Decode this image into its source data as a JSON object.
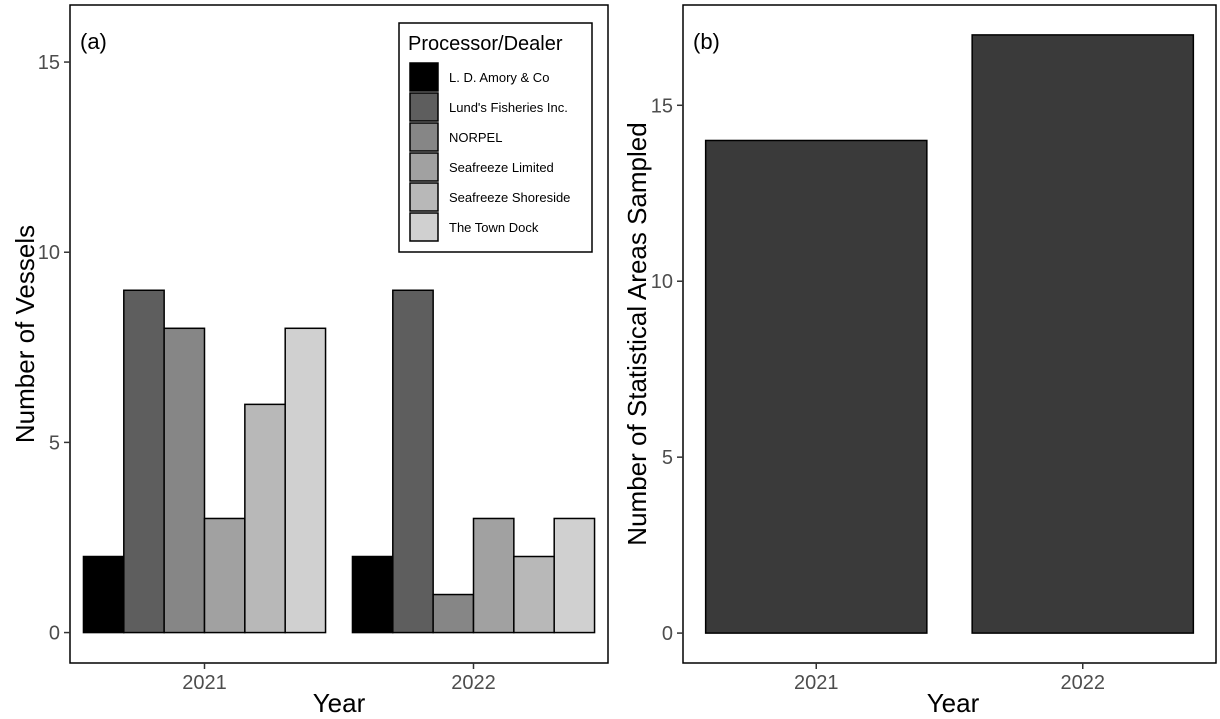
{
  "chart_data": [
    {
      "panel_tag": "(a)",
      "type": "bar",
      "categories": [
        "2021",
        "2022"
      ],
      "xlabel": "Year",
      "ylabel": "Number of Vessels",
      "ylim": [
        -0.8,
        16.5
      ],
      "yticks": [
        0,
        5,
        10,
        15
      ],
      "grid": false,
      "legend": {
        "title": "Processor/Dealer",
        "position": "top-right"
      },
      "series": [
        {
          "name": "L. D. Amory & Co",
          "color": "#000000",
          "values": [
            2,
            2
          ]
        },
        {
          "name": "Lund's Fisheries Inc.",
          "color": "#5e5e5e",
          "values": [
            9,
            9
          ]
        },
        {
          "name": "NORPEL",
          "color": "#868686",
          "values": [
            8,
            1
          ]
        },
        {
          "name": "Seafreeze Limited",
          "color": "#a1a1a1",
          "values": [
            3,
            3
          ]
        },
        {
          "name": "Seafreeze Shoreside",
          "color": "#b8b8b8",
          "values": [
            6,
            2
          ]
        },
        {
          "name": "The Town Dock",
          "color": "#d0d0d0",
          "values": [
            8,
            3
          ]
        }
      ]
    },
    {
      "panel_tag": "(b)",
      "type": "bar",
      "categories": [
        "2021",
        "2022"
      ],
      "xlabel": "Year",
      "ylabel": "Number of Statistical Areas Sampled",
      "ylim": [
        -0.85,
        17.85
      ],
      "yticks": [
        0,
        5,
        10,
        15
      ],
      "grid": false,
      "series": [
        {
          "color": "#3a3a3a",
          "values": [
            14,
            17
          ]
        }
      ]
    }
  ]
}
